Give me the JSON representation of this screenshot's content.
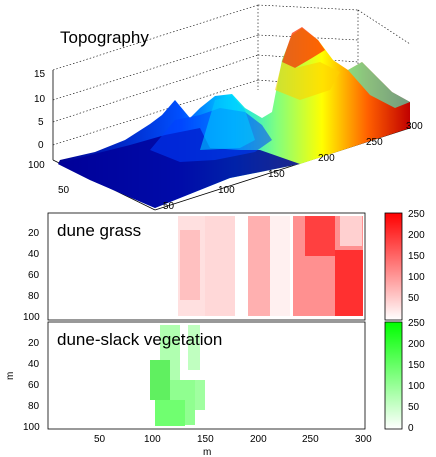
{
  "chart_data": [
    {
      "type": "surface",
      "title": "Topography",
      "x_ticks": [
        "50",
        "100",
        "150",
        "200",
        "250",
        "300"
      ],
      "y_ticks": [
        "50",
        "100"
      ],
      "z_ticks": [
        "0",
        "5",
        "10",
        "15"
      ],
      "xlim": [
        0,
        300
      ],
      "ylim": [
        0,
        100
      ],
      "zlim": [
        0,
        15
      ],
      "colormap": "jet",
      "grid": true,
      "profile_along_x": {
        "x": [
          0,
          50,
          100,
          130,
          150,
          170,
          200,
          230,
          250,
          270,
          300
        ],
        "z": [
          0.5,
          1.5,
          3,
          5,
          4,
          6,
          5,
          12,
          15,
          10,
          6
        ]
      }
    },
    {
      "type": "heatmap",
      "title": "dune grass",
      "colormap": "white-red",
      "colorbar_ticks": [
        "0",
        "50",
        "100",
        "150",
        "200",
        "250"
      ],
      "clim": [
        0,
        250
      ],
      "y_ticks": [
        "20",
        "40",
        "60",
        "80",
        "100"
      ],
      "xlim": [
        0,
        300
      ],
      "ylim": [
        0,
        100
      ],
      "zones_x_ranges": [
        [
          140,
          200
        ],
        [
          230,
          300
        ]
      ]
    },
    {
      "type": "heatmap",
      "title": "dune-slack vegetation",
      "colormap": "white-green",
      "colorbar_ticks": [
        "0",
        "50",
        "100",
        "150",
        "200",
        "250"
      ],
      "clim": [
        0,
        250
      ],
      "x_ticks": [
        "50",
        "100",
        "150",
        "200",
        "250",
        "300"
      ],
      "y_ticks": [
        "20",
        "40",
        "60",
        "80",
        "100"
      ],
      "xlabel": "m",
      "ylabel": "m",
      "xlim": [
        0,
        300
      ],
      "ylim": [
        0,
        100
      ],
      "zones_x_ranges": [
        [
          140,
          200
        ]
      ]
    }
  ]
}
